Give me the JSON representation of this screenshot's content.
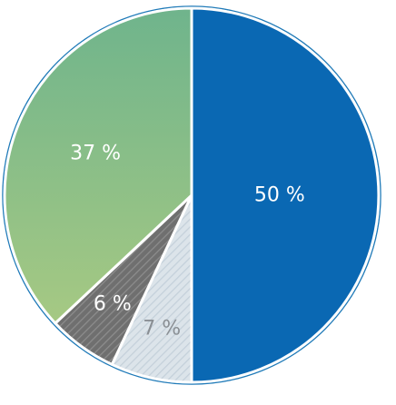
{
  "chart_data": {
    "type": "pie",
    "title": "",
    "start_angle_deg": 0,
    "direction": "clockwise",
    "slices": [
      {
        "value": 50,
        "label": "50 %",
        "color": "#0a68b3",
        "label_color": "#ffffff"
      },
      {
        "value": 7,
        "label": "7 %",
        "color": "#dce4ea",
        "hatch_color": "#c4d0da",
        "label_color": "#8a8f94"
      },
      {
        "value": 6,
        "label": "6 %",
        "color": "#6f6f6f",
        "hatch_color": "#8d8d8d",
        "label_color": "#ffffff"
      },
      {
        "value": 37,
        "label": "37 %",
        "gradient_top": "#6fb48c",
        "gradient_bottom": "#a6c983",
        "label_color": "#ffffff"
      }
    ],
    "outline_color": "#1f7ab8"
  }
}
